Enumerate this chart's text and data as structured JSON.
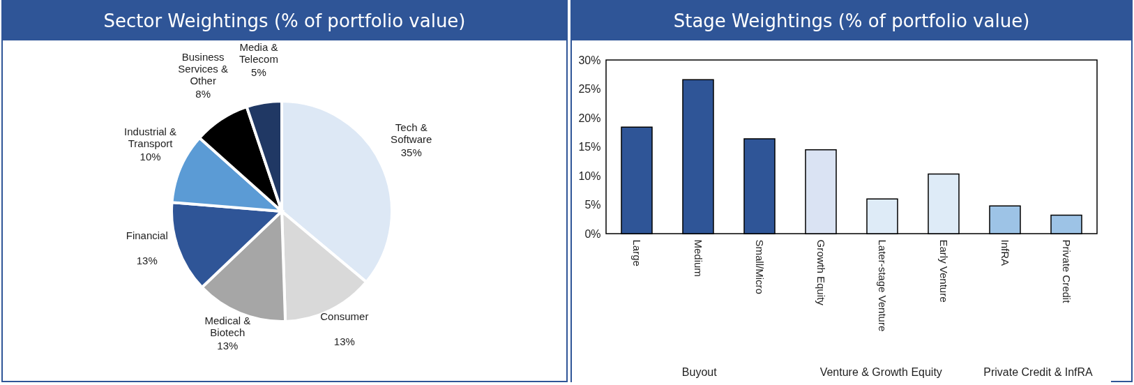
{
  "chart_data": [
    {
      "type": "pie",
      "title": "Sector Weightings (% of portfolio value)",
      "categories": [
        "Tech & Software",
        "Consumer",
        "Medical & Biotech",
        "Financial",
        "Industrial & Transport",
        "Business Services & Other",
        "Media & Telecom"
      ],
      "values": [
        35,
        13,
        13,
        13,
        10,
        8,
        5
      ],
      "colors": [
        "#dde8f5",
        "#d9d9d9",
        "#a6a6a6",
        "#2f5597",
        "#5b9bd5",
        "#000000",
        "#203864"
      ],
      "value_labels": [
        "35%",
        "13%",
        "13%",
        "13%",
        "10%",
        "8%",
        "5%"
      ],
      "legend": false
    },
    {
      "type": "bar",
      "title": "Stage Weightings (% of portfolio value)",
      "categories": [
        "Large",
        "Medium",
        "Small/Micro",
        "Growth Equity",
        "Later-stage Venture",
        "Early Venture",
        "InfRA",
        "Private Credit"
      ],
      "values": [
        18.4,
        26.6,
        16.4,
        14.5,
        6.0,
        10.3,
        4.8,
        3.2
      ],
      "colors": [
        "#2f5597",
        "#2f5597",
        "#2f5597",
        "#dae3f3",
        "#deebf7",
        "#deebf7",
        "#9dc3e6",
        "#9dc3e6"
      ],
      "ylim": [
        0,
        30
      ],
      "yticks": [
        {
          "value": 0,
          "label": "0%"
        },
        {
          "value": 5,
          "label": "5%"
        },
        {
          "value": 10,
          "label": "10%"
        },
        {
          "value": 15,
          "label": "15%"
        },
        {
          "value": 20,
          "label": "20%"
        },
        {
          "value": 25,
          "label": "25%"
        },
        {
          "value": 30,
          "label": "30%"
        }
      ],
      "grid": false,
      "legend": false,
      "annotations": [
        "Buyout",
        "Venture & Growth Equity",
        "Private Credit & InfRA"
      ]
    }
  ]
}
